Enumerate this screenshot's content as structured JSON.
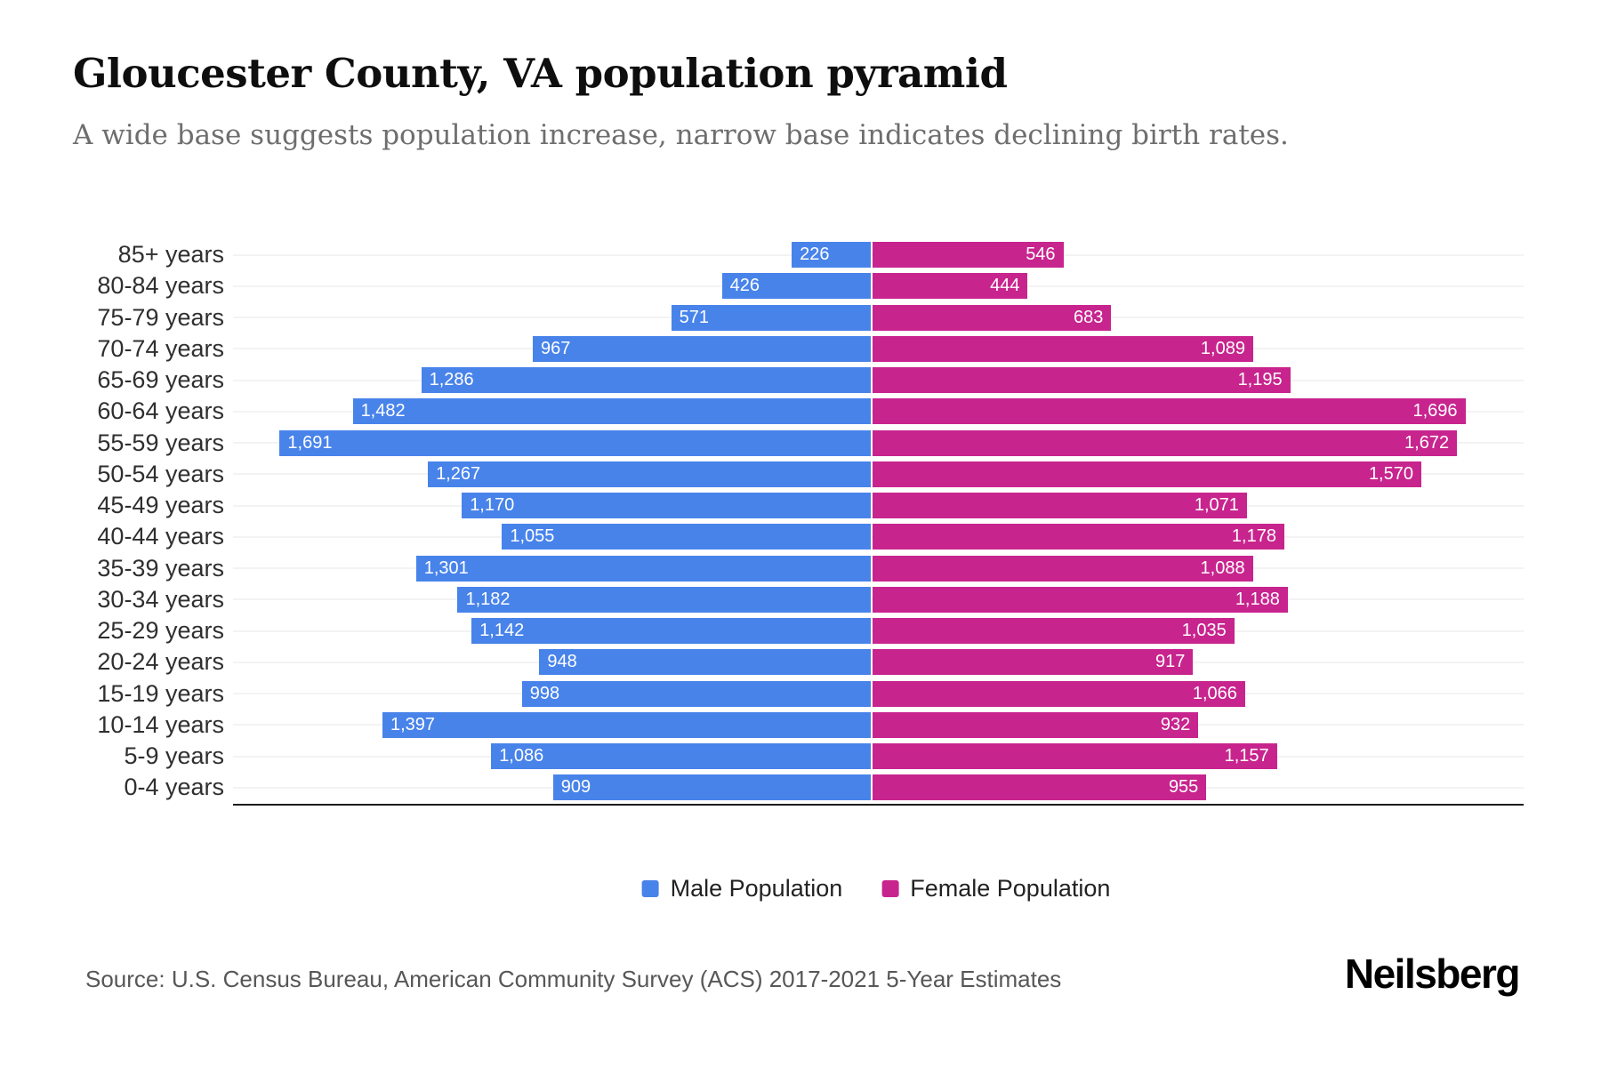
{
  "header": {
    "title": "Gloucester County, VA population pyramid",
    "subtitle": "A wide base suggests population increase, narrow base indicates declining birth rates."
  },
  "chart_data": {
    "type": "bar",
    "variant": "population-pyramid",
    "orientation": "horizontal",
    "categories": [
      "85+ years",
      "80-84 years",
      "75-79 years",
      "70-74 years",
      "65-69 years",
      "60-64 years",
      "55-59 years",
      "50-54 years",
      "45-49 years",
      "40-44 years",
      "35-39 years",
      "30-34 years",
      "25-29 years",
      "20-24 years",
      "15-19 years",
      "10-14 years",
      "5-9 years",
      "0-4 years"
    ],
    "series": [
      {
        "name": "Male Population",
        "color": "#4883EA",
        "side": "left",
        "values": [
          226,
          426,
          571,
          967,
          1286,
          1482,
          1691,
          1267,
          1170,
          1055,
          1301,
          1182,
          1142,
          948,
          998,
          1397,
          1086,
          909
        ]
      },
      {
        "name": "Female Population",
        "color": "#C8248E",
        "side": "right",
        "values": [
          546,
          444,
          683,
          1089,
          1195,
          1696,
          1672,
          1570,
          1071,
          1178,
          1088,
          1188,
          1035,
          917,
          1066,
          932,
          1157,
          955
        ]
      }
    ],
    "value_labels": "inside-bar, thousands separated by comma",
    "axis": {
      "value_ticks_visible": false,
      "xmax_per_side": 1750,
      "baseline": "bottom"
    },
    "grid": "faint horizontal row lines",
    "legend_position": "bottom-center"
  },
  "legend": {
    "male_label": "Male Population",
    "female_label": "Female Population"
  },
  "footer": {
    "source": "Source: U.S. Census Bureau, American Community Survey (ACS) 2017-2021 5-Year Estimates",
    "brand": "Neilsberg"
  }
}
